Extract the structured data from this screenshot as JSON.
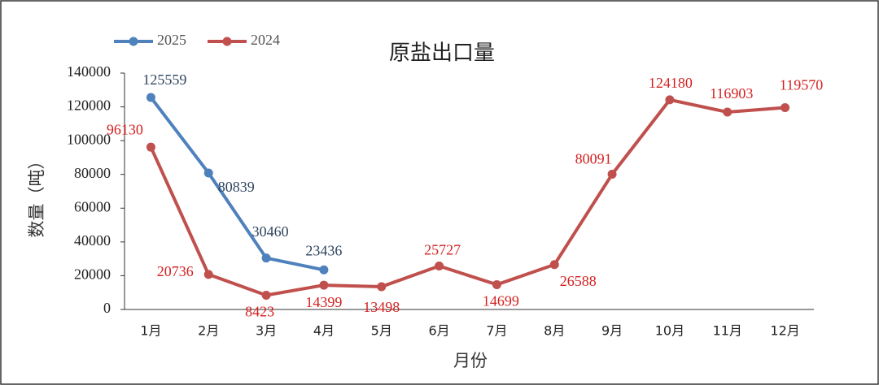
{
  "chart_data": {
    "type": "line",
    "title": "原盐出口量",
    "x_label": "月份",
    "y_label": "数量（吨）",
    "categories": [
      "1月",
      "2月",
      "3月",
      "4月",
      "5月",
      "6月",
      "7月",
      "8月",
      "9月",
      "10月",
      "11月",
      "12月"
    ],
    "series": [
      {
        "name": "2025",
        "color": "#4f81bd",
        "values": [
          125559,
          80839,
          30460,
          23436,
          null,
          null,
          null,
          null,
          null,
          null,
          null,
          null
        ]
      },
      {
        "name": "2024",
        "color": "#c0504d",
        "values": [
          96130,
          20736,
          8423,
          14399,
          13498,
          25727,
          14699,
          26588,
          80091,
          124180,
          116903,
          119570
        ]
      }
    ],
    "ylim": [
      0,
      140000
    ],
    "yticks": [
      0,
      20000,
      40000,
      60000,
      80000,
      100000,
      120000,
      140000
    ],
    "legend": "top-left",
    "grid": false
  }
}
